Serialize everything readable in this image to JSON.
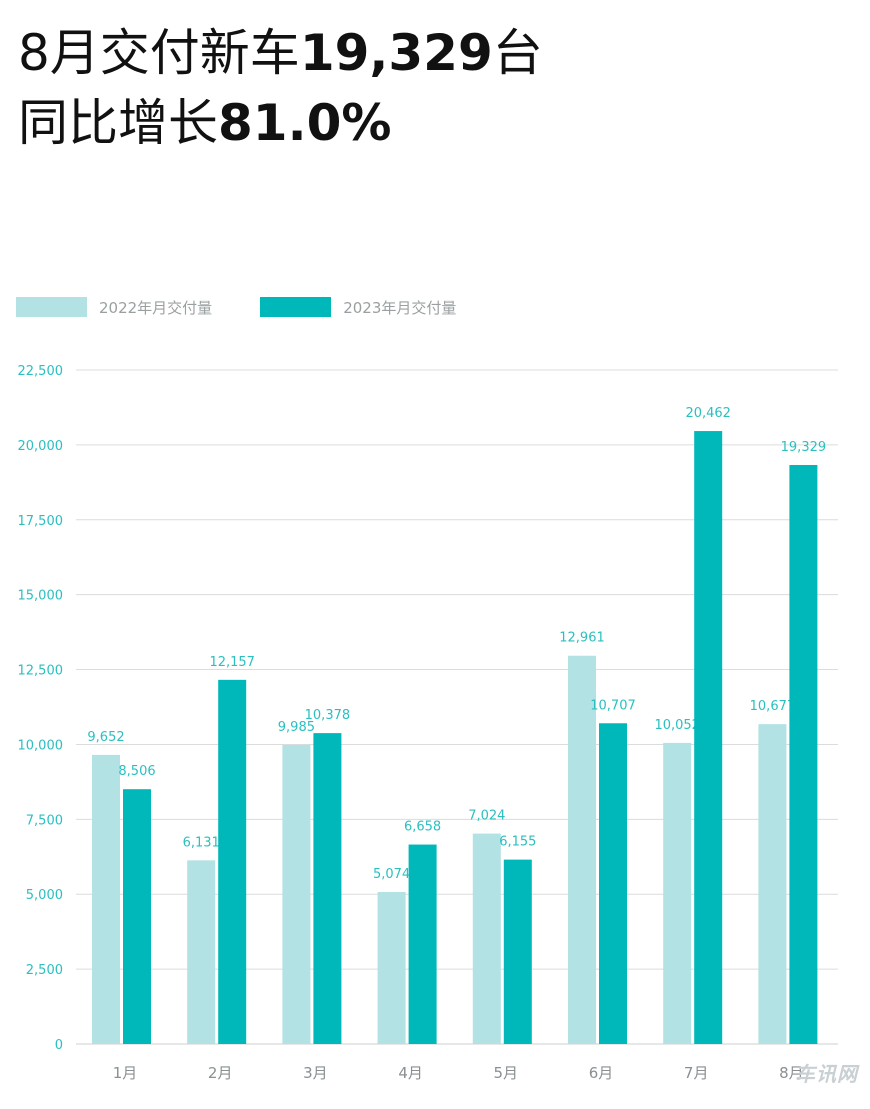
{
  "headline": {
    "line1_prefix": "8月交付新车",
    "line1_number": "19,329",
    "line1_suffix": "台",
    "line2_prefix": "同比增长",
    "line2_number": "81.0%"
  },
  "legend": [
    {
      "label": "2022年月交付量",
      "color": "#b2e2e3"
    },
    {
      "label": "2023年月交付量",
      "color": "#00b8b9"
    }
  ],
  "watermark": "车讯网",
  "chart_data": {
    "type": "bar",
    "title": "",
    "xlabel": "",
    "ylabel": "",
    "categories": [
      "1月",
      "2月",
      "3月",
      "4月",
      "5月",
      "6月",
      "7月",
      "8月"
    ],
    "series": [
      {
        "name": "2022年月交付量",
        "values": [
          9652,
          6131,
          9985,
          5074,
          7024,
          12961,
          10052,
          10677
        ],
        "labels": [
          "9,652",
          "6,131",
          "9,985",
          "5,074",
          "7,024",
          "12,961",
          "10,052",
          "10,677"
        ]
      },
      {
        "name": "2023年月交付量",
        "values": [
          8506,
          12157,
          10378,
          6658,
          6155,
          10707,
          20462,
          19329
        ],
        "labels": [
          "8,506",
          "12,157",
          "10,378",
          "6,658",
          "6,155",
          "10,707",
          "20,462",
          "19,329"
        ]
      }
    ],
    "yticks": [
      0,
      2500,
      5000,
      7500,
      10000,
      12500,
      15000,
      17500,
      20000,
      22500
    ],
    "ytick_labels": [
      "0",
      "2,500",
      "5,000",
      "7,500",
      "10,000",
      "12,500",
      "15,000",
      "17,500",
      "20,000",
      "22,500"
    ],
    "ylim": [
      0,
      22500
    ],
    "grid": true,
    "legend_position": "top-left",
    "colors": {
      "axis_text": "#2bbfc0",
      "category_text": "#8a8f92",
      "grid": "#dcdcdc",
      "value_label": "#2bbfc0"
    }
  }
}
